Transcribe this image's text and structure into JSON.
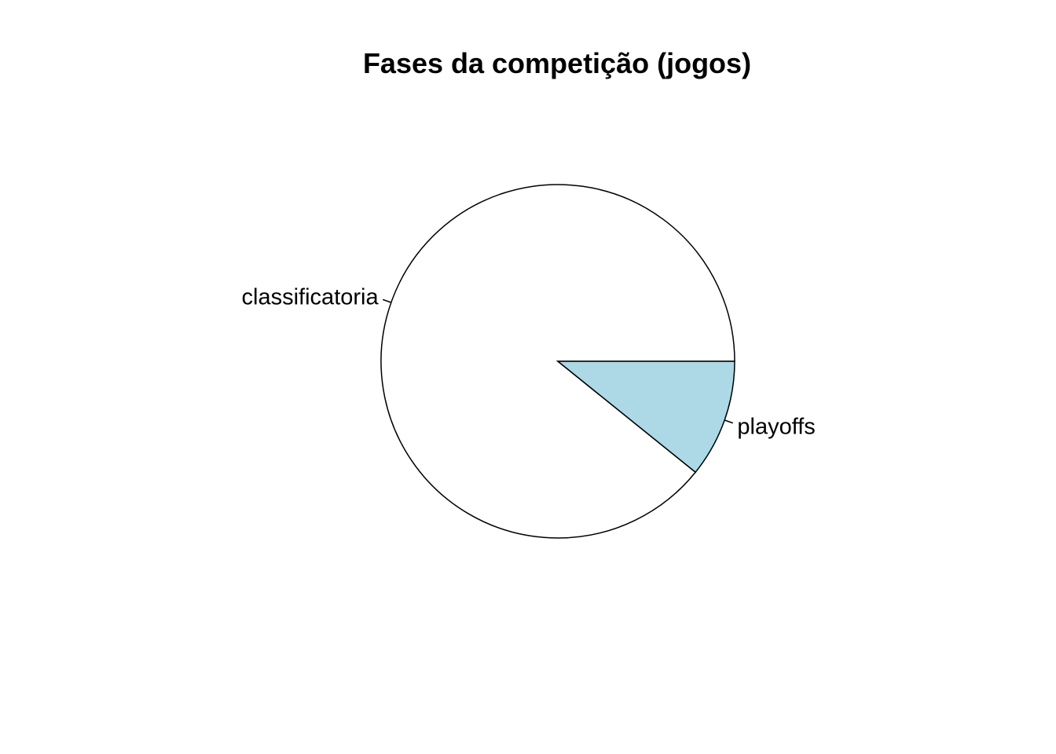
{
  "chart_data": {
    "type": "pie",
    "title": "Fases da competição (jogos)",
    "categories": [
      "classificatoria",
      "playoffs"
    ],
    "values": [
      89.2,
      10.8
    ],
    "colors": [
      "#FFFFFF",
      "#ADD8E6"
    ],
    "direction": "counterclockwise",
    "start_angle_deg": 0,
    "legend": "none",
    "outline_color": "#000000"
  }
}
